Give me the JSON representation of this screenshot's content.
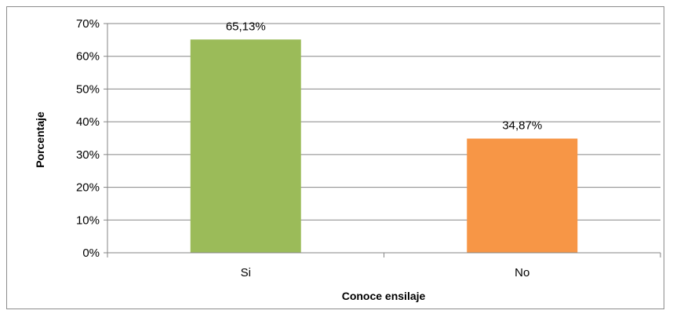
{
  "chart_data": {
    "type": "bar",
    "categories": [
      "Si",
      "No"
    ],
    "values": [
      65.13,
      34.87
    ],
    "data_labels": [
      "65,13%",
      "34,87%"
    ],
    "colors": [
      "#9BBB59",
      "#F79646"
    ],
    "xlabel": "Conoce ensilaje",
    "ylabel": "Porcentaje",
    "ylim": [
      0,
      70
    ],
    "yticks": [
      0,
      10,
      20,
      30,
      40,
      50,
      60,
      70
    ],
    "ytick_labels": [
      "0%",
      "10%",
      "20%",
      "30%",
      "40%",
      "50%",
      "60%",
      "70%"
    ],
    "grid": true,
    "gridline_color": "#868686",
    "legend": "none"
  }
}
